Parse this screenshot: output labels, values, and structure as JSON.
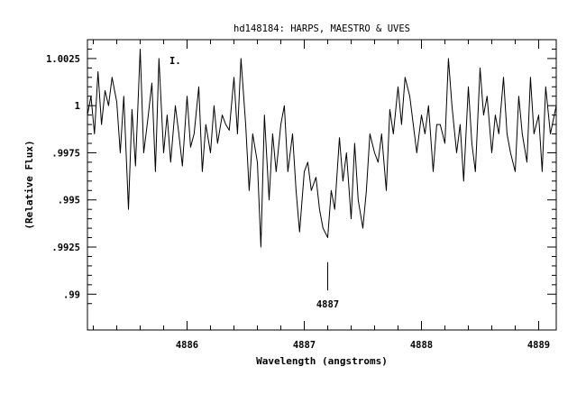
{
  "chart_data": {
    "type": "line",
    "title": "hd148184: HARPS, MAESTRO & UVES",
    "xlabel": "Wavelength (angstroms)",
    "ylabel": "(Relative Flux)",
    "xlim": [
      4885.15,
      4889.15
    ],
    "ylim": [
      0.9881,
      1.0035
    ],
    "grid": false,
    "legend": "none",
    "x_ticks": [
      4886,
      4887,
      4888,
      4889
    ],
    "x_tick_labels": [
      "4886",
      "4887",
      "4888",
      "4889"
    ],
    "y_ticks": [
      0.99,
      0.9925,
      0.995,
      0.9975,
      1.0,
      1.0025
    ],
    "y_tick_labels": [
      ".99",
      ".9925",
      ".995",
      ".9975",
      "1",
      "1.0025"
    ],
    "annotations": [
      {
        "text": "I.",
        "x": 4885.85,
        "y": 1.0022
      },
      {
        "text": "4887",
        "x": 4887.2,
        "y": 0.9893,
        "marker_y": [
          0.9902,
          0.9917
        ]
      }
    ],
    "series": [
      {
        "x": [
          4885.15,
          4885.18,
          4885.21,
          4885.24,
          4885.27,
          4885.3,
          4885.33,
          4885.36,
          4885.4,
          4885.43,
          4885.46,
          4885.5,
          4885.53,
          4885.56,
          4885.6,
          4885.63,
          4885.66,
          4885.7,
          4885.73,
          4885.76,
          4885.8,
          4885.83,
          4885.86,
          4885.9,
          4885.93,
          4885.96,
          4886.0,
          4886.03,
          4886.06,
          4886.1,
          4886.13,
          4886.16,
          4886.2,
          4886.23,
          4886.26,
          4886.3,
          4886.33,
          4886.36,
          4886.4,
          4886.43,
          4886.46,
          4886.5,
          4886.53,
          4886.56,
          4886.6,
          4886.63,
          4886.66,
          4886.7,
          4886.73,
          4886.76,
          4886.8,
          4886.83,
          4886.86,
          4886.9,
          4886.93,
          4886.96,
          4887.0,
          4887.03,
          4887.06,
          4887.1,
          4887.13,
          4887.16,
          4887.2,
          4887.23,
          4887.26,
          4887.3,
          4887.33,
          4887.36,
          4887.4,
          4887.43,
          4887.46,
          4887.5,
          4887.53,
          4887.56,
          4887.6,
          4887.63,
          4887.66,
          4887.7,
          4887.73,
          4887.76,
          4887.8,
          4887.83,
          4887.86,
          4887.9,
          4887.93,
          4887.96,
          4888.0,
          4888.03,
          4888.06,
          4888.1,
          4888.13,
          4888.16,
          4888.2,
          4888.23,
          4888.26,
          4888.3,
          4888.33,
          4888.36,
          4888.4,
          4888.43,
          4888.46,
          4888.5,
          4888.53,
          4888.56,
          4888.6,
          4888.63,
          4888.66,
          4888.7,
          4888.73,
          4888.76,
          4888.8,
          4888.83,
          4888.86,
          4888.9,
          4888.93,
          4888.96,
          4889.0,
          4889.03,
          4889.06,
          4889.1,
          4889.15
        ],
        "y": [
          0.9995,
          1.0005,
          0.9985,
          1.0018,
          0.999,
          1.0008,
          1.0,
          1.0015,
          1.0002,
          0.9975,
          1.0005,
          0.9945,
          0.9998,
          0.9968,
          1.003,
          0.9975,
          0.999,
          1.0012,
          0.9965,
          1.0025,
          0.9975,
          0.9995,
          0.997,
          1.0,
          0.9985,
          0.9968,
          1.0005,
          0.9978,
          0.9985,
          1.001,
          0.9965,
          0.999,
          0.9975,
          1.0,
          0.998,
          0.9995,
          0.999,
          0.9987,
          1.0015,
          0.9985,
          1.0025,
          0.999,
          0.9955,
          0.9985,
          0.997,
          0.9925,
          0.9995,
          0.995,
          0.9985,
          0.9965,
          0.999,
          1.0,
          0.9965,
          0.9985,
          0.9955,
          0.9933,
          0.9965,
          0.997,
          0.9955,
          0.9962,
          0.9945,
          0.9935,
          0.993,
          0.9955,
          0.9945,
          0.9983,
          0.996,
          0.9975,
          0.994,
          0.998,
          0.995,
          0.9935,
          0.9955,
          0.9985,
          0.9975,
          0.997,
          0.9985,
          0.9955,
          0.9998,
          0.9985,
          1.001,
          0.999,
          1.0015,
          1.0005,
          0.999,
          0.9975,
          0.9995,
          0.9985,
          1.0,
          0.9965,
          0.999,
          0.999,
          0.998,
          1.0025,
          1.0,
          0.9975,
          0.999,
          0.996,
          1.001,
          0.998,
          0.9965,
          1.002,
          0.9995,
          1.0005,
          0.9975,
          0.9995,
          0.9985,
          1.0015,
          0.9985,
          0.9975,
          0.9965,
          1.0005,
          0.9985,
          0.997,
          1.0015,
          0.9985,
          0.9995,
          0.9965,
          1.001,
          0.9985,
          1.0
        ]
      }
    ]
  }
}
